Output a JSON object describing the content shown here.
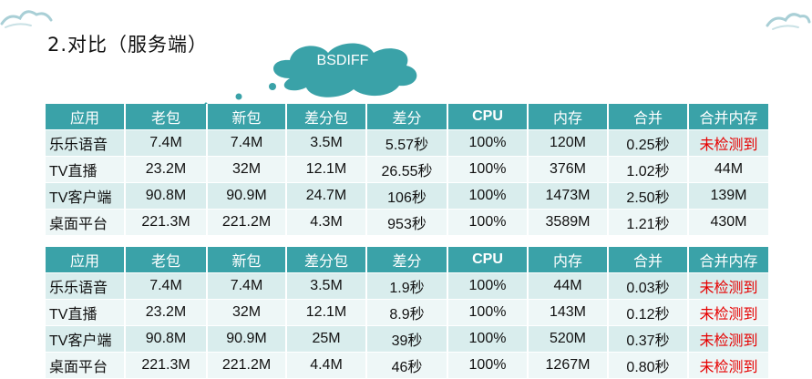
{
  "title": "2.对比（服务端）",
  "callout": "BSDIFF",
  "headers": [
    "应用",
    "老包",
    "新包",
    "差分包",
    "差分",
    "CPU",
    "内存",
    "合并",
    "合并内存"
  ],
  "table1": [
    [
      "乐乐语音",
      "7.4M",
      "7.4M",
      "3.5M",
      "5.57秒",
      "100%",
      "120M",
      "0.25秒",
      "未检测到"
    ],
    [
      "TV直播",
      "23.2M",
      "32M",
      "12.1M",
      "26.55秒",
      "100%",
      "376M",
      "1.02秒",
      "44M"
    ],
    [
      "TV客户端",
      "90.8M",
      "90.9M",
      "24.7M",
      "106秒",
      "100%",
      "1473M",
      "2.50秒",
      "139M"
    ],
    [
      "桌面平台",
      "221.3M",
      "221.2M",
      "4.3M",
      "953秒",
      "100%",
      "3589M",
      "1.21秒",
      "430M"
    ]
  ],
  "table2": [
    [
      "乐乐语音",
      "7.4M",
      "7.4M",
      "3.5M",
      "1.9秒",
      "100%",
      "44M",
      "0.03秒",
      "未检测到"
    ],
    [
      "TV直播",
      "23.2M",
      "32M",
      "12.1M",
      "8.9秒",
      "100%",
      "143M",
      "0.12秒",
      "未检测到"
    ],
    [
      "TV客户端",
      "90.8M",
      "90.9M",
      "25M",
      "39秒",
      "100%",
      "520M",
      "0.37秒",
      "未检测到"
    ],
    [
      "桌面平台",
      "221.3M",
      "221.2M",
      "4.4M",
      "46秒",
      "100%",
      "1267M",
      "0.80秒",
      "未检测到"
    ]
  ],
  "colors": {
    "header": "#3aa2a8",
    "row_odd": "#d9eded",
    "row_even": "#eef7f7",
    "alert": "#e60000"
  }
}
